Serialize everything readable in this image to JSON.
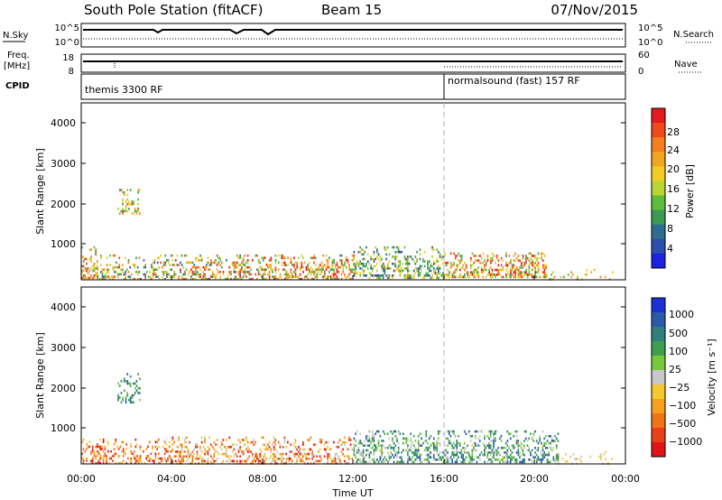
{
  "header": {
    "station": "South Pole Station (fitACF)",
    "beam": "Beam 15",
    "date": "07/Nov/2015"
  },
  "panels": {
    "nsky": {
      "left_label": "N.Sky",
      "left_ticks": [
        "10^5",
        "10^0"
      ],
      "right_ticks": [
        "10^5",
        "10^0"
      ],
      "right_label": "N.Search"
    },
    "freq": {
      "left_label_1": "Freq.",
      "left_label_2": "[MHz]",
      "left_ticks": [
        "18",
        "8"
      ],
      "right_ticks": [
        "60",
        "0"
      ],
      "right_label": "Nave"
    },
    "cpid": {
      "label": "CPID",
      "segments": [
        "themis 3300 RF",
        "normalsound (fast) 157 RF"
      ]
    }
  },
  "power_scale": {
    "label": "Power [dB]",
    "ticks": [
      "28",
      "24",
      "20",
      "16",
      "12",
      "8",
      "4"
    ],
    "colors": [
      "#e51b1b",
      "#f04a1a",
      "#f57f20",
      "#f2a51f",
      "#f3cc23",
      "#b8d532",
      "#5fbd3c",
      "#3c9a55",
      "#2d6e8e",
      "#2a4fad",
      "#1c22e0"
    ]
  },
  "velocity_scale": {
    "label": "Velocity [m s⁻¹]",
    "ticks": [
      "1000",
      "500",
      "100",
      "25",
      "−25",
      "−100",
      "−500",
      "−1000"
    ],
    "colors": [
      "#1e2fd6",
      "#2a5aa8",
      "#2e7f7e",
      "#3f9e50",
      "#78c83c",
      "#c8c8c8",
      "#f5c830",
      "#f5a01e",
      "#f07318",
      "#e8401a",
      "#e01414"
    ]
  },
  "power_panel": {
    "ylabel": "Slant Range [km]",
    "yticks": [
      "1000",
      "2000",
      "3000",
      "4000"
    ]
  },
  "velocity_panel": {
    "ylabel": "Slant Range [km]",
    "yticks": [
      "1000",
      "2000",
      "3000",
      "4000"
    ]
  },
  "x_axis": {
    "ticks": [
      "00:00",
      "04:00",
      "08:00",
      "12:00",
      "16:00",
      "20:00",
      "00:00"
    ],
    "label": "Time UT"
  },
  "chart_data": {
    "type": "heatmap",
    "x_range": [
      "00:00",
      "00:00"
    ],
    "y_range_km": [
      180,
      4500
    ],
    "marker_time": "16:00",
    "power_clusters": [
      {
        "t0": 0.0,
        "t1": 0.7,
        "r0": 200,
        "r1": 1000,
        "density": 0.55,
        "levels": [
          0.3,
          1.0
        ]
      },
      {
        "t0": 0.7,
        "t1": 4.0,
        "r0": 200,
        "r1": 800,
        "density": 0.45,
        "levels": [
          0.1,
          0.9
        ]
      },
      {
        "t0": 1.6,
        "t1": 2.6,
        "r0": 1800,
        "r1": 2400,
        "density": 0.35,
        "levels": [
          0.3,
          0.9
        ]
      },
      {
        "t0": 4.0,
        "t1": 8.0,
        "r0": 200,
        "r1": 800,
        "density": 0.5,
        "levels": [
          0.2,
          1.0
        ]
      },
      {
        "t0": 8.0,
        "t1": 12.0,
        "r0": 200,
        "r1": 800,
        "density": 0.55,
        "levels": [
          0.3,
          1.0
        ]
      },
      {
        "t0": 12.0,
        "t1": 16.0,
        "r0": 250,
        "r1": 1000,
        "density": 0.5,
        "levels": [
          0.1,
          0.7
        ]
      },
      {
        "t0": 16.0,
        "t1": 20.5,
        "r0": 250,
        "r1": 850,
        "density": 0.6,
        "levels": [
          0.3,
          1.0
        ]
      },
      {
        "t0": 20.5,
        "t1": 23.5,
        "r0": 200,
        "r1": 450,
        "density": 0.15,
        "levels": [
          0.3,
          0.8
        ]
      }
    ],
    "velocity_clusters": [
      {
        "t0": 0.0,
        "t1": 4.0,
        "r0": 200,
        "r1": 800,
        "density": 0.45,
        "levels": [
          0.0,
          0.45
        ]
      },
      {
        "t0": 1.6,
        "t1": 2.6,
        "r0": 1700,
        "r1": 2400,
        "density": 0.35,
        "levels": [
          0.6,
          0.85
        ]
      },
      {
        "t0": 4.0,
        "t1": 12.0,
        "r0": 200,
        "r1": 850,
        "density": 0.5,
        "levels": [
          0.05,
          0.55
        ]
      },
      {
        "t0": 12.0,
        "t1": 21.0,
        "r0": 250,
        "r1": 1000,
        "density": 0.55,
        "levels": [
          0.45,
          0.9
        ]
      },
      {
        "t0": 21.0,
        "t1": 23.5,
        "r0": 200,
        "r1": 500,
        "density": 0.15,
        "levels": [
          0.35,
          0.55
        ]
      }
    ]
  }
}
